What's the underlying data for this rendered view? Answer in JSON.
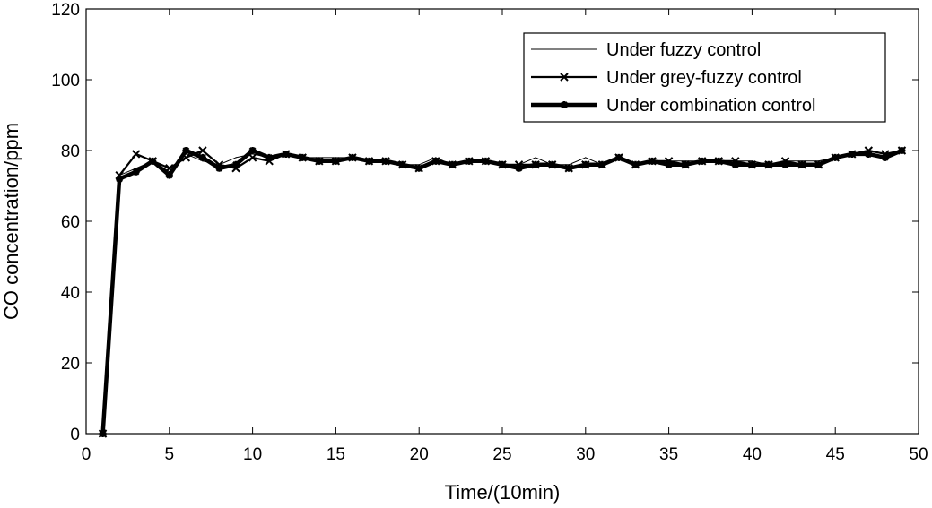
{
  "chart_data": {
    "type": "line",
    "xlabel": "Time/(10min)",
    "ylabel": "CO concentration/ppm",
    "xlim": [
      0,
      50
    ],
    "ylim": [
      0,
      120
    ],
    "xticks": [
      "0",
      "5",
      "10",
      "15",
      "20",
      "25",
      "30",
      "35",
      "40",
      "45",
      "50"
    ],
    "yticks": [
      "0",
      "20",
      "40",
      "60",
      "80",
      "100",
      "120"
    ],
    "grid": false,
    "legend_position": "top-right",
    "x": [
      1,
      2,
      3,
      4,
      5,
      6,
      7,
      8,
      9,
      10,
      11,
      12,
      13,
      14,
      15,
      16,
      17,
      18,
      19,
      20,
      21,
      22,
      23,
      24,
      25,
      26,
      27,
      28,
      29,
      30,
      31,
      32,
      33,
      34,
      35,
      36,
      37,
      38,
      39,
      40,
      41,
      42,
      43,
      44,
      45,
      46,
      47,
      48,
      49
    ],
    "series": [
      {
        "name": "Under fuzzy control",
        "style": "thin",
        "color": "#000000",
        "values": [
          0,
          73,
          75,
          77,
          74,
          79,
          77,
          76,
          78,
          79,
          78,
          79,
          78,
          78,
          78,
          78,
          77,
          77,
          76,
          76,
          78,
          76,
          77,
          77,
          76,
          76,
          78,
          76,
          76,
          78,
          76,
          78,
          76,
          77,
          77,
          77,
          77,
          77,
          77,
          77,
          76,
          77,
          77,
          77,
          78,
          79,
          80,
          79,
          80
        ]
      },
      {
        "name": "Under grey-fuzzy control",
        "style": "medium-x",
        "color": "#000000",
        "values": [
          0,
          73,
          79,
          77,
          75,
          78,
          80,
          76,
          75,
          78,
          77,
          79,
          78,
          77,
          77,
          78,
          77,
          77,
          76,
          75,
          77,
          76,
          77,
          77,
          76,
          76,
          76,
          76,
          75,
          76,
          76,
          78,
          76,
          77,
          77,
          76,
          77,
          77,
          77,
          76,
          76,
          77,
          76,
          76,
          78,
          79,
          80,
          79,
          80
        ]
      },
      {
        "name": "Under combination control",
        "style": "thick",
        "color": "#000000",
        "values": [
          0,
          72,
          74,
          77,
          73,
          80,
          78,
          75,
          76,
          80,
          78,
          79,
          78,
          77,
          77,
          78,
          77,
          77,
          76,
          75,
          77,
          76,
          77,
          77,
          76,
          75,
          76,
          76,
          75,
          76,
          76,
          78,
          76,
          77,
          76,
          76,
          77,
          77,
          76,
          76,
          76,
          76,
          76,
          76,
          78,
          79,
          79,
          78,
          80
        ]
      }
    ]
  }
}
